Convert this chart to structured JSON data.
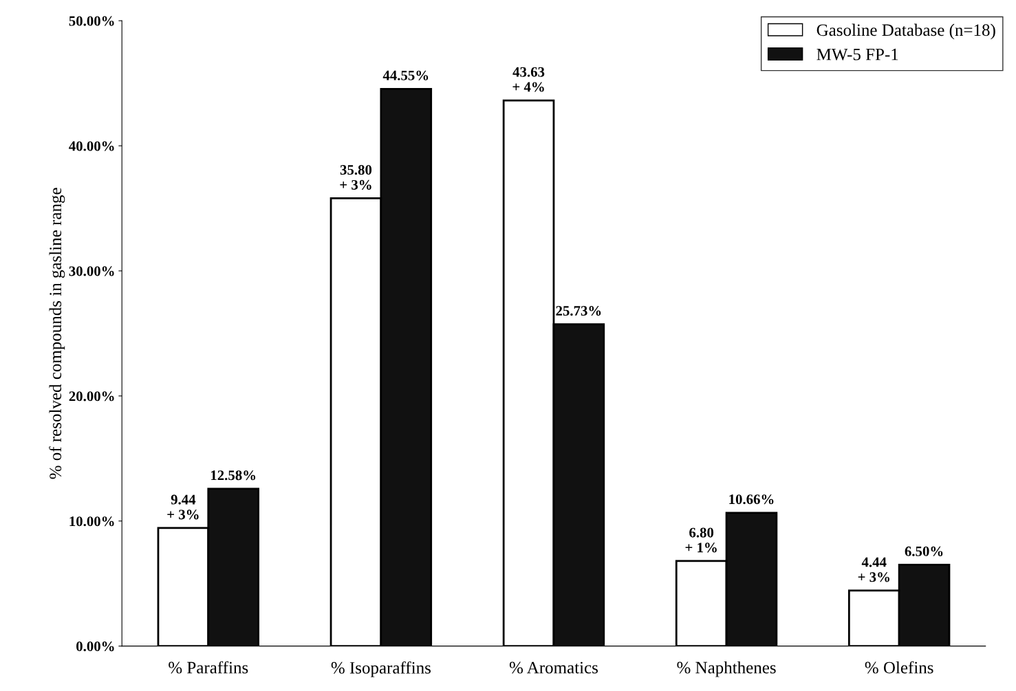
{
  "chart_data": {
    "type": "bar",
    "ylabel": "% of resolved compounds in gasline range",
    "categories": [
      "% Paraffins",
      "% Isoparaffins",
      "% Aromatics",
      "% Naphthenes",
      "% Olefins"
    ],
    "series": [
      {
        "name": "Gasoline Database (n=18)",
        "color": "#ffffff",
        "values": [
          9.44,
          35.8,
          43.63,
          6.8,
          4.44
        ],
        "value_labels": [
          "9.44\n+ 3%",
          "35.80\n+ 3%",
          "43.63\n+ 4%",
          "6.80\n+ 1%",
          "4.44\n+ 3%"
        ]
      },
      {
        "name": "MW-5 FP-1",
        "color": "#111111",
        "values": [
          12.58,
          44.55,
          25.73,
          10.66,
          6.5
        ],
        "value_labels": [
          "12.58%",
          "44.55%",
          "25.73%",
          "10.66%",
          "6.50%"
        ]
      }
    ],
    "ylim": [
      0,
      50
    ],
    "yticks": [
      {
        "value": 0,
        "label": "0.00%"
      },
      {
        "value": 10,
        "label": "10.00%"
      },
      {
        "value": 20,
        "label": "20.00%"
      },
      {
        "value": 30,
        "label": "30.00%"
      },
      {
        "value": 40,
        "label": "40.00%"
      },
      {
        "value": 50,
        "label": "50.00%"
      }
    ],
    "grid": false,
    "legend": "top right"
  }
}
